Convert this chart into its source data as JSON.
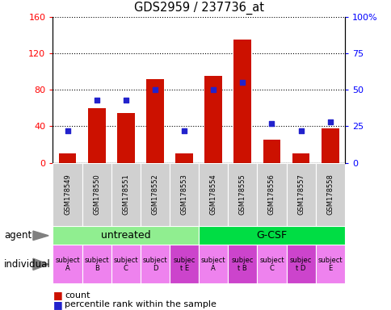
{
  "title": "GDS2959 / 237736_at",
  "samples": [
    "GSM178549",
    "GSM178550",
    "GSM178551",
    "GSM178552",
    "GSM178553",
    "GSM178554",
    "GSM178555",
    "GSM178556",
    "GSM178557",
    "GSM178558"
  ],
  "counts": [
    10,
    60,
    55,
    92,
    10,
    95,
    135,
    25,
    10,
    38
  ],
  "percentile_ranks": [
    22,
    43,
    43,
    50,
    22,
    50,
    55,
    27,
    22,
    28
  ],
  "ylim_left": [
    0,
    160
  ],
  "ylim_right": [
    0,
    100
  ],
  "yticks_left": [
    0,
    40,
    80,
    120,
    160
  ],
  "yticks_right": [
    0,
    25,
    50,
    75,
    100
  ],
  "yticklabels_right": [
    "0",
    "25",
    "50",
    "75",
    "100%"
  ],
  "agent_groups": [
    {
      "label": "untreated",
      "start": 0,
      "end": 5,
      "color": "#90ee90"
    },
    {
      "label": "G-CSF",
      "start": 5,
      "end": 10,
      "color": "#00dd44"
    }
  ],
  "individual_labels": [
    "subject\nA",
    "subject\nB",
    "subject\nC",
    "subject\nD",
    "subjec\nt E",
    "subject\nA",
    "subjec\nt B",
    "subject\nC",
    "subjec\nt D",
    "subject\nE"
  ],
  "individual_highlight": [
    4,
    6,
    8
  ],
  "individual_color_normal": "#ee82ee",
  "individual_color_highlight": "#cc44cc",
  "bar_color": "#cc1100",
  "dot_color": "#2222cc",
  "legend_count_color": "#cc1100",
  "legend_dot_color": "#2222cc",
  "sample_bg_color": "#d0d0d0",
  "agent_label_left": "agent",
  "individual_label_left": "individual"
}
